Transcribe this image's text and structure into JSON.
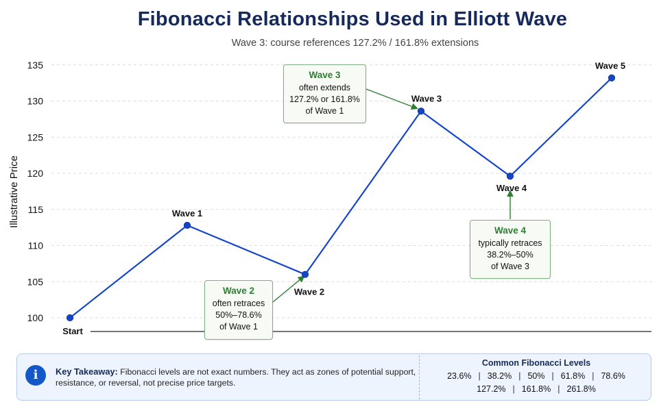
{
  "chart_data": {
    "type": "line",
    "title": "Fibonacci Relationships Used in Elliott Wave",
    "subtitle": "Wave 3: course references 127.2% / 161.8% extensions",
    "xlabel": "",
    "ylabel": "Illustrative Price",
    "ylim": [
      99,
      136
    ],
    "yticks": [
      100,
      105,
      110,
      115,
      120,
      125,
      130,
      135
    ],
    "grid": true,
    "color": "#1546c7",
    "points": [
      {
        "label": "Start",
        "x": 0,
        "y": 100
      },
      {
        "label": "Wave 1",
        "x": 1,
        "y": 112.8
      },
      {
        "label": "Wave 2",
        "x": 2,
        "y": 106
      },
      {
        "label": "Wave 3",
        "x": 3,
        "y": 128.6
      },
      {
        "label": "Wave 4",
        "x": 4,
        "y": 119.6
      },
      {
        "label": "Wave 5",
        "x": 5,
        "y": 133.2
      }
    ],
    "annotations": [
      {
        "target": "Wave 2",
        "title": "Wave 2",
        "lines": [
          "often retraces",
          "50%–78.6%",
          "of Wave 1"
        ]
      },
      {
        "target": "Wave 3",
        "title": "Wave 3",
        "lines": [
          "often extends",
          "127.2% or 161.8%",
          "of Wave 1"
        ]
      },
      {
        "target": "Wave 4",
        "title": "Wave 4",
        "lines": [
          "typically retraces",
          "38.2%–50%",
          "of Wave 3"
        ]
      }
    ]
  },
  "takeaway": {
    "lead": "Key Takeaway:",
    "text": "Fibonacci levels are not exact numbers. They act as zones of potential support, resistance, or reversal, not precise price targets."
  },
  "fib_levels": {
    "title": "Common Fibonacci Levels",
    "row1": [
      "23.6%",
      "38.2%",
      "50%",
      "61.8%",
      "78.6%"
    ],
    "row2": [
      "127.2%",
      "161.8%",
      "261.8%"
    ]
  }
}
